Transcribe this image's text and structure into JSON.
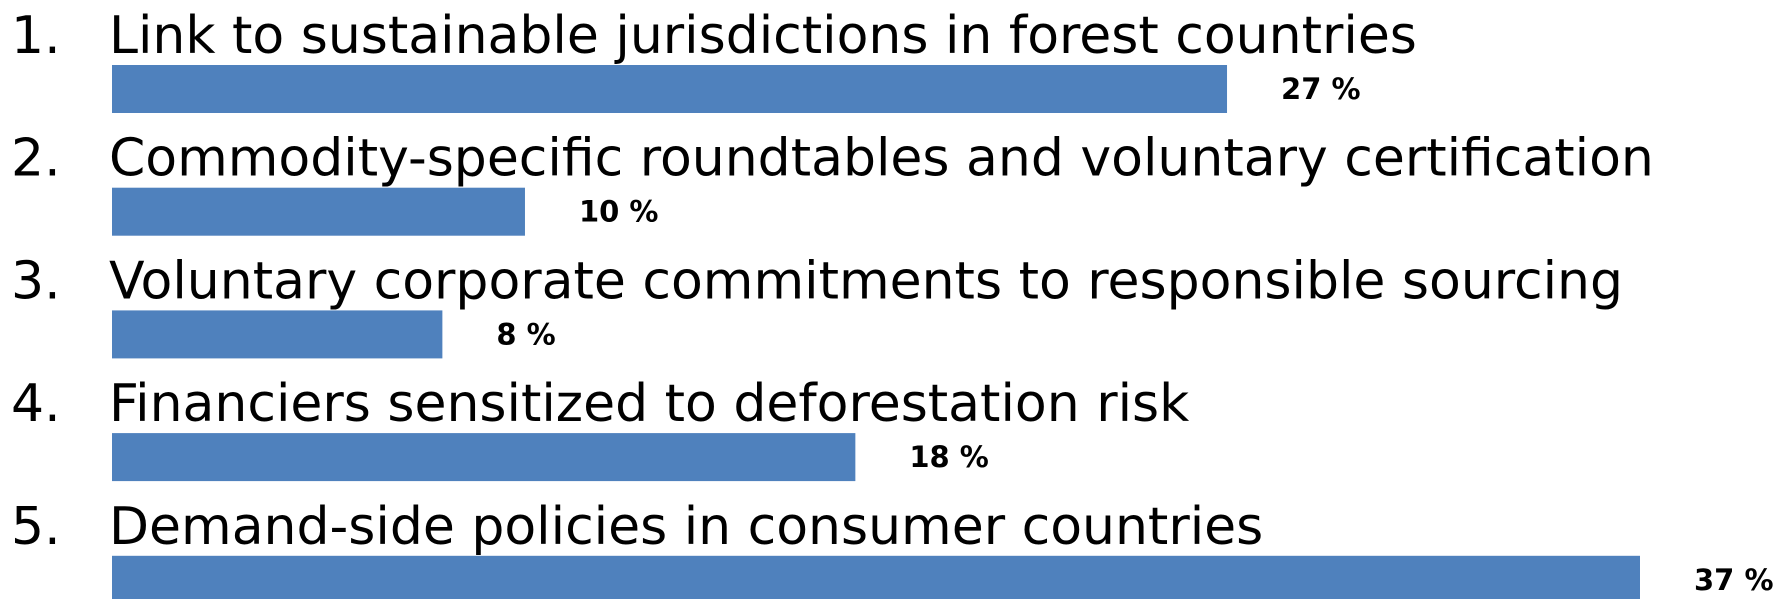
{
  "chart_data": {
    "type": "bar",
    "orientation": "horizontal",
    "numbers": [
      "1.",
      "2.",
      "3.",
      "4.",
      "5."
    ],
    "categories": [
      "Link to sustainable jurisdictions in forest countries",
      "Commodity-specific roundtables and voluntary certification",
      "Voluntary corporate commitments to responsible sourcing",
      "Financiers sensitized to deforestation risk",
      "Demand-side policies in consumer countries"
    ],
    "values": [
      27,
      10,
      8,
      18,
      37
    ],
    "value_labels": [
      "27 %",
      "10 %",
      "8 %",
      "18 %",
      "37 %"
    ],
    "color": "#4f81bd"
  }
}
